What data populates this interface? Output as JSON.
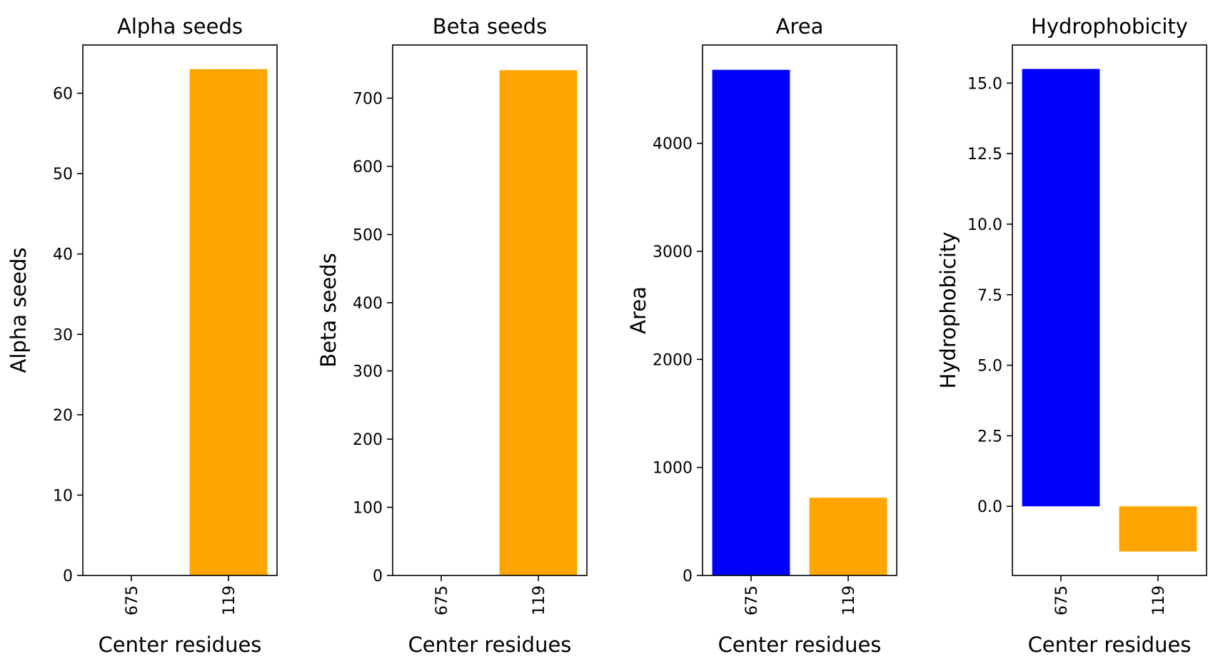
{
  "chart_data": [
    {
      "type": "bar",
      "title": "Alpha seeds",
      "xlabel": "Center residues",
      "ylabel": "Alpha seeds",
      "categories": [
        "675",
        "119"
      ],
      "values": [
        0,
        63
      ],
      "colors": [
        "#0000ff",
        "#ffa500"
      ],
      "ylim": [
        0,
        66
      ],
      "yticks": [
        0,
        10,
        20,
        30,
        40,
        50,
        60
      ],
      "ytick_labels": [
        "0",
        "10",
        "20",
        "30",
        "40",
        "50",
        "60"
      ]
    },
    {
      "type": "bar",
      "title": "Beta seeds",
      "xlabel": "Center residues",
      "ylabel": "Beta seeds",
      "categories": [
        "675",
        "119"
      ],
      "values": [
        0,
        741
      ],
      "colors": [
        "#0000ff",
        "#ffa500"
      ],
      "ylim": [
        0,
        778
      ],
      "yticks": [
        0,
        100,
        200,
        300,
        400,
        500,
        600,
        700
      ],
      "ytick_labels": [
        "0",
        "100",
        "200",
        "300",
        "400",
        "500",
        "600",
        "700"
      ]
    },
    {
      "type": "bar",
      "title": "Area",
      "xlabel": "Center residues",
      "ylabel": "Area",
      "categories": [
        "675",
        "119"
      ],
      "values": [
        4680,
        720
      ],
      "colors": [
        "#0000ff",
        "#ffa500"
      ],
      "ylim": [
        0,
        4910
      ],
      "yticks": [
        0,
        1000,
        2000,
        3000,
        4000
      ],
      "ytick_labels": [
        "0",
        "1000",
        "2000",
        "3000",
        "4000"
      ]
    },
    {
      "type": "bar",
      "title": "Hydrophobicity",
      "xlabel": "Center residues",
      "ylabel": "Hydrophobicity",
      "categories": [
        "675",
        "119"
      ],
      "values": [
        15.5,
        -1.6
      ],
      "colors": [
        "#0000ff",
        "#ffa500"
      ],
      "ylim": [
        -2.45,
        16.35
      ],
      "yticks": [
        0,
        2.5,
        5,
        7.5,
        10,
        12.5,
        15
      ],
      "ytick_labels": [
        "0.0",
        "2.5",
        "5.0",
        "7.5",
        "10.0",
        "12.5",
        "15.0"
      ]
    }
  ]
}
